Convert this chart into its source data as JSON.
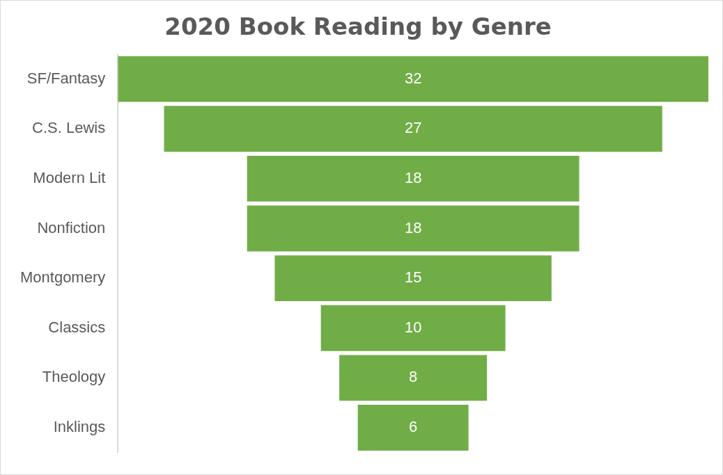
{
  "chart_data": {
    "type": "other",
    "title": "2020 Book Reading by Genre",
    "categories": [
      "SF/Fantasy",
      "C.S. Lewis",
      "Modern Lit",
      "Nonfiction",
      "Montgomery",
      "Classics",
      "Theology",
      "Inklings"
    ],
    "values": [
      32,
      27,
      18,
      18,
      15,
      10,
      8,
      6
    ],
    "color": "#70ad47",
    "data_labels": true
  }
}
